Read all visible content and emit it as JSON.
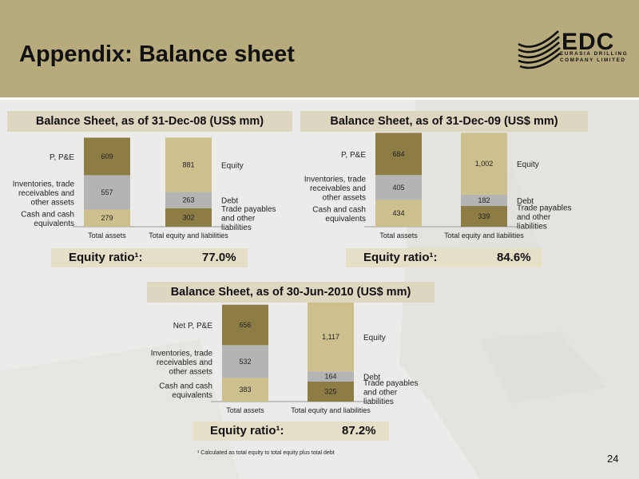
{
  "slide": {
    "title": "Appendix: Balance sheet",
    "page_number": "24",
    "footnote": "¹ Calculated as total equity to total equity plus total debt"
  },
  "logo": {
    "name": "EDC",
    "line1": "EURASIA DRILLING",
    "line2": "COMPANY LIMITED"
  },
  "colors": {
    "header": "#b7ab7e",
    "ppe": "#8d7d44",
    "inventories": "#b4b4b4",
    "cash": "#cdc08e",
    "equity": "#cdc08e",
    "debt": "#b4b4b4",
    "payables": "#8d7d44"
  },
  "chart_data": [
    {
      "type": "bar",
      "stacked": true,
      "title": "Balance Sheet, as of 31-Dec-08 (US$ mm)",
      "categories": [
        "Total assets",
        "Total equity and liabilities"
      ],
      "series": [
        {
          "name": "Cash and cash equivalents",
          "values": [
            279,
            null
          ]
        },
        {
          "name": "Inventories, trade receivables and other assets",
          "values": [
            557,
            null
          ]
        },
        {
          "name": "P, P&E",
          "values": [
            609,
            null
          ]
        },
        {
          "name": "Trade payables and other liabilities",
          "values": [
            null,
            302
          ]
        },
        {
          "name": "Debt",
          "values": [
            null,
            263
          ]
        },
        {
          "name": "Equity",
          "values": [
            null,
            881
          ]
        }
      ],
      "asset_labels": [
        "Cash and cash equivalents",
        "Inventories, trade receivables and other assets",
        "P, P&E"
      ],
      "liability_labels": [
        "Trade payables and other liabilities",
        "Debt",
        "Equity"
      ],
      "equity_ratio_label": "Equity ratio¹:",
      "equity_ratio": "77.0%"
    },
    {
      "type": "bar",
      "stacked": true,
      "title": "Balance Sheet, as of 31-Dec-09 (US$ mm)",
      "categories": [
        "Total assets",
        "Total equity and liabilities"
      ],
      "series": [
        {
          "name": "Cash and cash equivalents",
          "values": [
            434,
            null
          ]
        },
        {
          "name": "Inventories, trade receivables and other assets",
          "values": [
            405,
            null
          ]
        },
        {
          "name": "P, P&E",
          "values": [
            684,
            null
          ]
        },
        {
          "name": "Trade payables and other liabilities",
          "values": [
            null,
            339
          ]
        },
        {
          "name": "Debt",
          "values": [
            null,
            182
          ]
        },
        {
          "name": "Equity",
          "values": [
            null,
            1002
          ]
        }
      ],
      "asset_labels": [
        "Cash and cash equivalents",
        "Inventories, trade receivables and other assets",
        "P, P&E"
      ],
      "liability_labels": [
        "Trade payables and other liabilities",
        "Debt",
        "Equity"
      ],
      "equity_ratio_label": "Equity ratio¹:",
      "equity_ratio": "84.6%"
    },
    {
      "type": "bar",
      "stacked": true,
      "title": "Balance Sheet, as of 30-Jun-2010 (US$ mm)",
      "categories": [
        "Total assets",
        "Total equity and liabilities"
      ],
      "series": [
        {
          "name": "Cash and cash equivalents",
          "values": [
            383,
            null
          ]
        },
        {
          "name": "Inventories, trade receivables and other assets",
          "values": [
            532,
            null
          ]
        },
        {
          "name": "Net P, P&E",
          "values": [
            656,
            null
          ]
        },
        {
          "name": "Trade payables and other liabilities",
          "values": [
            null,
            325
          ]
        },
        {
          "name": "Debt",
          "values": [
            null,
            164
          ]
        },
        {
          "name": "Equity",
          "values": [
            null,
            1117
          ]
        }
      ],
      "asset_labels": [
        "Cash and cash equivalents",
        "Inventories, trade receivables and other assets",
        "Net P, P&E"
      ],
      "liability_labels": [
        "Trade payables and other liabilities",
        "Debt",
        "Equity"
      ],
      "equity_ratio_label": "Equity ratio¹:",
      "equity_ratio": "87.2%"
    }
  ]
}
